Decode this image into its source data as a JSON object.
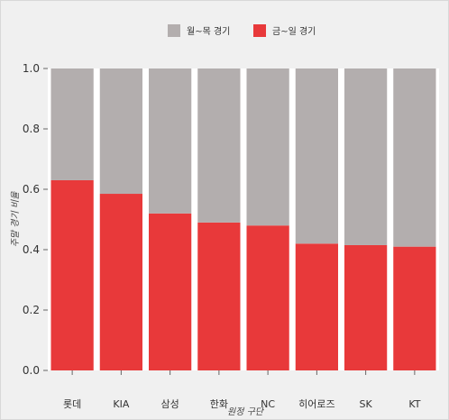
{
  "chart_data": {
    "type": "bar",
    "stacked": true,
    "categories": [
      "롯데",
      "KIA",
      "삼성",
      "한화",
      "NC",
      "히어로즈",
      "SK",
      "KT"
    ],
    "series": [
      {
        "name": "금~일 경기",
        "color": "#e8393a",
        "values": [
          0.63,
          0.585,
          0.52,
          0.49,
          0.48,
          0.42,
          0.415,
          0.41
        ]
      },
      {
        "name": "월~목 경기",
        "color": "#b3aeae",
        "values": [
          0.37,
          0.415,
          0.48,
          0.51,
          0.52,
          0.58,
          0.585,
          0.59
        ]
      }
    ],
    "legend_order": [
      "월~목 경기",
      "금~일 경기"
    ],
    "legend_position": "top-center",
    "xlabel": "원정 구단",
    "ylabel": "주말 경기 비율",
    "ylim": [
      0,
      1
    ],
    "yticks": [
      "0.0",
      "0.2",
      "0.4",
      "0.6",
      "0.8",
      "1.0"
    ],
    "grid": false,
    "background_color": "#f0f0f0"
  }
}
